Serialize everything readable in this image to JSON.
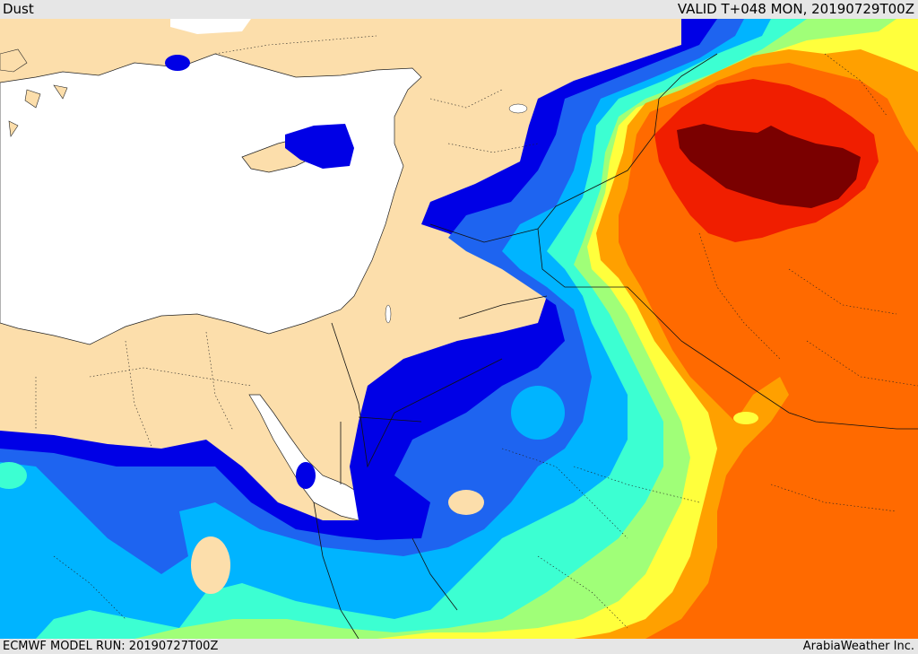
{
  "header": {
    "title": "Dust",
    "valid": "VALID T+048 MON, 20190729T00Z"
  },
  "footer": {
    "model_run": "ECMWF MODEL RUN: 20190727T00Z",
    "credit": "ArabiaWeather Inc."
  },
  "colors": {
    "land": "#fcdeab",
    "sea": "#ffffff",
    "level_1": "#0000e6",
    "level_2": "#1e64f0",
    "level_3": "#00b4ff",
    "level_4": "#3cffd2",
    "level_5": "#a0ff78",
    "level_6": "#ffff3c",
    "level_7": "#ffa000",
    "level_8": "#ff6a00",
    "level_9": "#f01e00",
    "level_10": "#7a0000"
  }
}
